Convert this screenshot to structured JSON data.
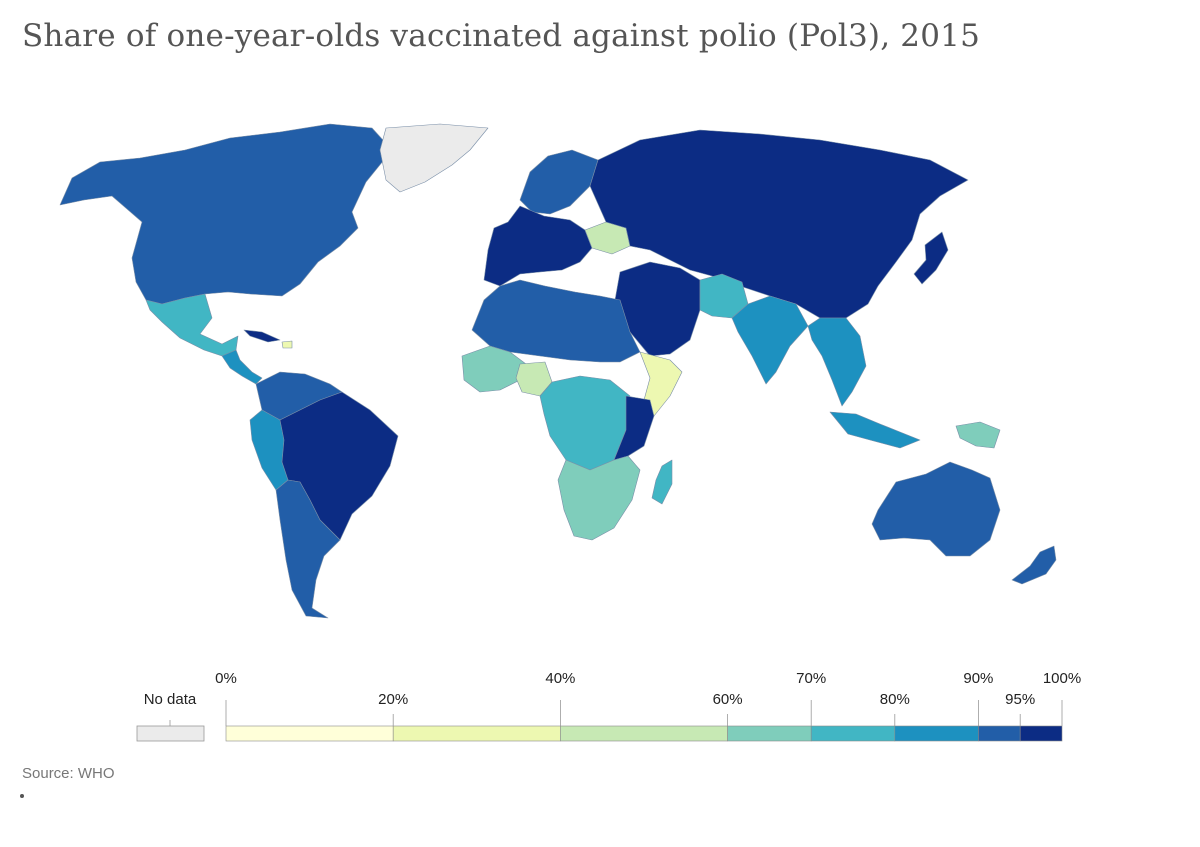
{
  "title": "Share of one-year-olds vaccinated against polio (Pol3), 2015",
  "source": "Source: WHO",
  "legend": {
    "no_data_label": "No data",
    "no_data_color": "#ebebeb",
    "bins": [
      {
        "from": 0,
        "to": 20,
        "color": "#ffffd9"
      },
      {
        "from": 20,
        "to": 40,
        "color": "#edf8b1"
      },
      {
        "from": 40,
        "to": 60,
        "color": "#c7e9b4"
      },
      {
        "from": 60,
        "to": 70,
        "color": "#7fcdbb"
      },
      {
        "from": 70,
        "to": 80,
        "color": "#41b6c4"
      },
      {
        "from": 80,
        "to": 90,
        "color": "#1d91c0"
      },
      {
        "from": 90,
        "to": 95,
        "color": "#225ea8"
      },
      {
        "from": 95,
        "to": 100,
        "color": "#0c2c84"
      }
    ],
    "ticks": [
      {
        "value": 0,
        "label": "0%",
        "row": "top"
      },
      {
        "value": 20,
        "label": "20%",
        "row": "bottom"
      },
      {
        "value": 40,
        "label": "40%",
        "row": "top"
      },
      {
        "value": 60,
        "label": "60%",
        "row": "bottom"
      },
      {
        "value": 70,
        "label": "70%",
        "row": "top"
      },
      {
        "value": 80,
        "label": "80%",
        "row": "bottom"
      },
      {
        "value": 90,
        "label": "90%",
        "row": "top"
      },
      {
        "value": 95,
        "label": "95%",
        "row": "bottom"
      },
      {
        "value": 100,
        "label": "100%",
        "row": "top"
      }
    ]
  },
  "regions": [
    {
      "name": "north-america",
      "color": "#225ea8"
    },
    {
      "name": "greenland",
      "color": "#ebebeb"
    },
    {
      "name": "mexico",
      "color": "#41b6c4"
    },
    {
      "name": "central-america",
      "color": "#1d91c0"
    },
    {
      "name": "cuba",
      "color": "#0c2c84"
    },
    {
      "name": "haiti",
      "color": "#edf8b1"
    },
    {
      "name": "south-america-north",
      "color": "#225ea8"
    },
    {
      "name": "brazil",
      "color": "#0c2c84"
    },
    {
      "name": "peru-ecuador",
      "color": "#1d91c0"
    },
    {
      "name": "southern-cone",
      "color": "#225ea8"
    },
    {
      "name": "western-europe",
      "color": "#0c2c84"
    },
    {
      "name": "scandinavia",
      "color": "#225ea8"
    },
    {
      "name": "ukraine",
      "color": "#c7e9b4"
    },
    {
      "name": "russia-china",
      "color": "#0c2c84"
    },
    {
      "name": "south-asia",
      "color": "#1d91c0"
    },
    {
      "name": "afghanistan-pakistan",
      "color": "#41b6c4"
    },
    {
      "name": "middle-east",
      "color": "#0c2c84"
    },
    {
      "name": "north-africa",
      "color": "#225ea8"
    },
    {
      "name": "west-africa",
      "color": "#7fcdbb"
    },
    {
      "name": "nigeria",
      "color": "#c7e9b4"
    },
    {
      "name": "central-africa",
      "color": "#41b6c4"
    },
    {
      "name": "horn-of-africa",
      "color": "#edf8b1"
    },
    {
      "name": "east-africa",
      "color": "#0c2c84"
    },
    {
      "name": "southern-africa",
      "color": "#7fcdbb"
    },
    {
      "name": "madagascar",
      "color": "#41b6c4"
    },
    {
      "name": "southeast-asia",
      "color": "#1d91c0"
    },
    {
      "name": "indonesia",
      "color": "#1d91c0"
    },
    {
      "name": "papua",
      "color": "#7fcdbb"
    },
    {
      "name": "australia",
      "color": "#225ea8"
    },
    {
      "name": "new-zealand",
      "color": "#225ea8"
    },
    {
      "name": "japan",
      "color": "#0c2c84"
    }
  ]
}
